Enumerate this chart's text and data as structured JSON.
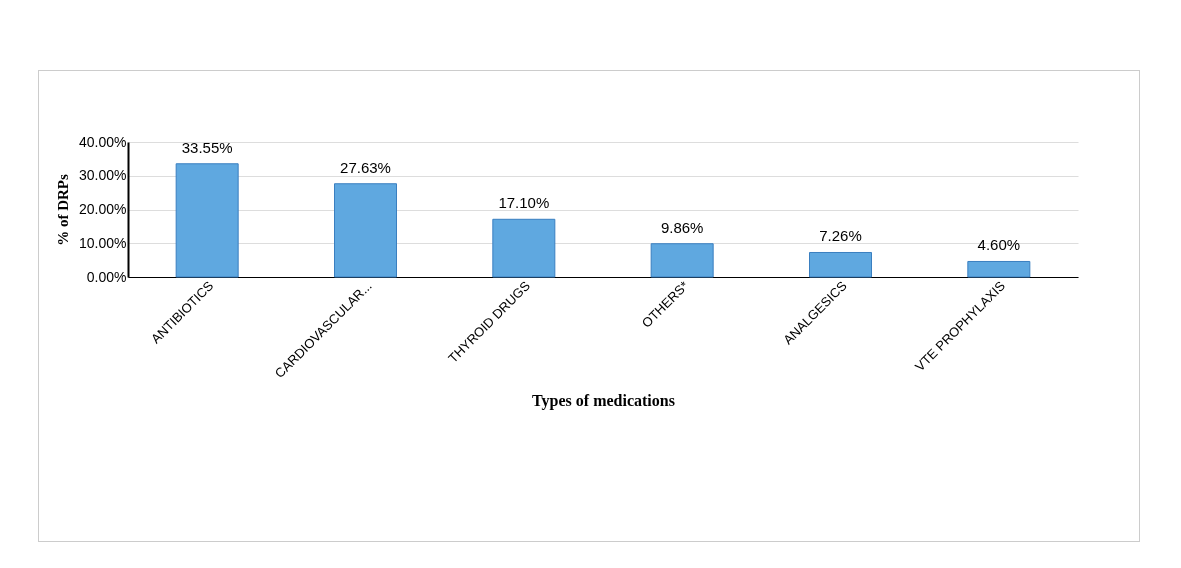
{
  "chart_data": {
    "type": "bar",
    "xlabel": "Types of medications",
    "ylabel": "% of DRPs",
    "categories": [
      "ANTIBIOTICS",
      "CARDIOVASCULAR...",
      "THYROID DRUGS",
      "OTHERS*",
      "ANALGESICS",
      "VTE PROPHYLAXIS"
    ],
    "values": [
      33.55,
      27.63,
      17.1,
      9.86,
      7.26,
      4.6
    ],
    "value_labels": [
      "33.55%",
      "27.63%",
      "17.10%",
      "9.86%",
      "7.26%",
      "4.60%"
    ],
    "color": "#5fa8e0",
    "ylim": [
      0,
      40
    ],
    "yticks": [
      {
        "value": 0,
        "label": "0.00%"
      },
      {
        "value": 10,
        "label": "10.00%"
      },
      {
        "value": 20,
        "label": "20.00%"
      },
      {
        "value": 30,
        "label": "30.00%"
      },
      {
        "value": 40,
        "label": "40.00%"
      }
    ],
    "grid": "y"
  }
}
